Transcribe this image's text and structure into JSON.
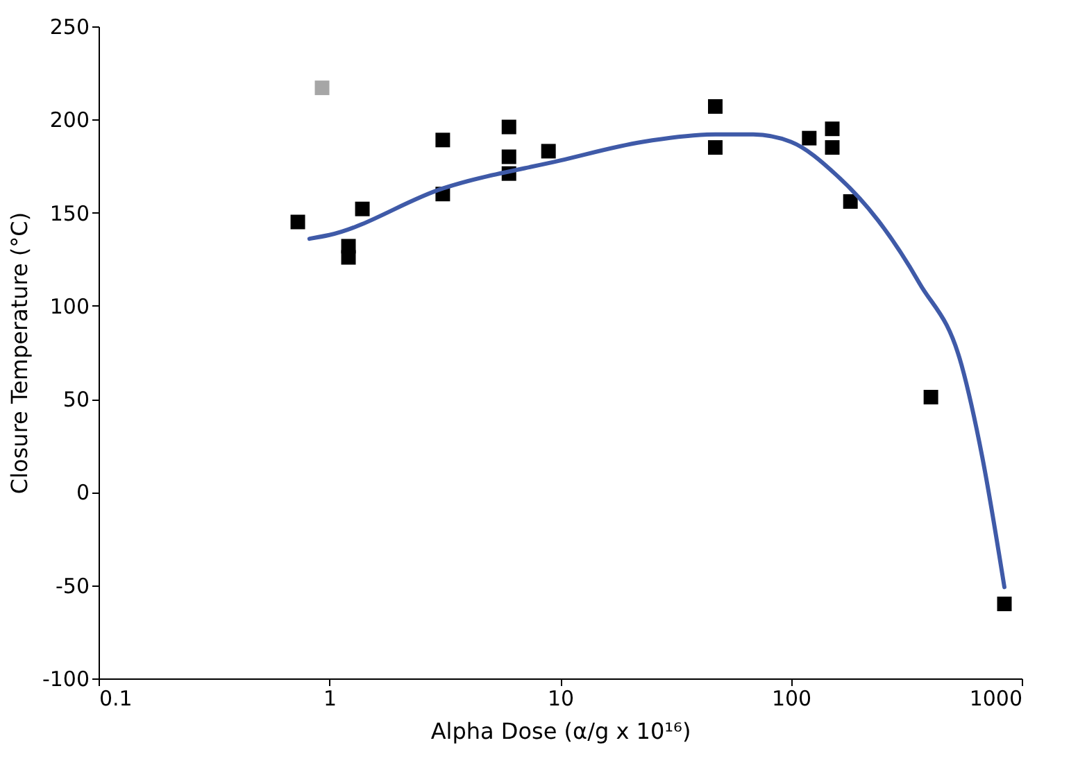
{
  "chart_data": {
    "type": "scatter",
    "xlabel": "Alpha Dose  (α/g x 10¹⁶)",
    "ylabel": "Closure Temperature (°C)",
    "log": "x",
    "xlim": [
      0.1,
      1000
    ],
    "xticks": [
      0.1,
      1,
      10,
      100,
      1000
    ],
    "ylim": [
      -100,
      250
    ],
    "yticks": [
      -100,
      -50,
      0,
      50,
      100,
      150,
      200,
      250
    ],
    "grid": false,
    "marker": "square",
    "series": [
      {
        "color": "#000000",
        "x": [
          0.73,
          1.21,
          1.21,
          1.39,
          3.1,
          3.1,
          6.0,
          6.0,
          6.0,
          8.9,
          47,
          47,
          120,
          151,
          151,
          181,
          404,
          841
        ],
        "values": [
          145,
          132,
          126,
          152,
          189,
          160,
          196,
          180,
          171,
          183,
          207,
          185,
          190,
          195,
          185,
          156,
          51,
          -60
        ]
      },
      {
        "color": "#a6a6a6",
        "x": [
          0.93
        ],
        "values": [
          217
        ]
      },
      {
        "type": "line",
        "color": "#3f5aa8",
        "line_style": "solid",
        "marker": "none",
        "x": [
          0.82,
          1,
          3.1,
          10,
          22.8,
          47,
          68.6,
          100,
          158,
          238,
          361,
          549,
          674,
          841
        ],
        "values": [
          136,
          138,
          163,
          178,
          188,
          192,
          192,
          188,
          170,
          146,
          112,
          68,
          19,
          -51
        ]
      }
    ]
  }
}
